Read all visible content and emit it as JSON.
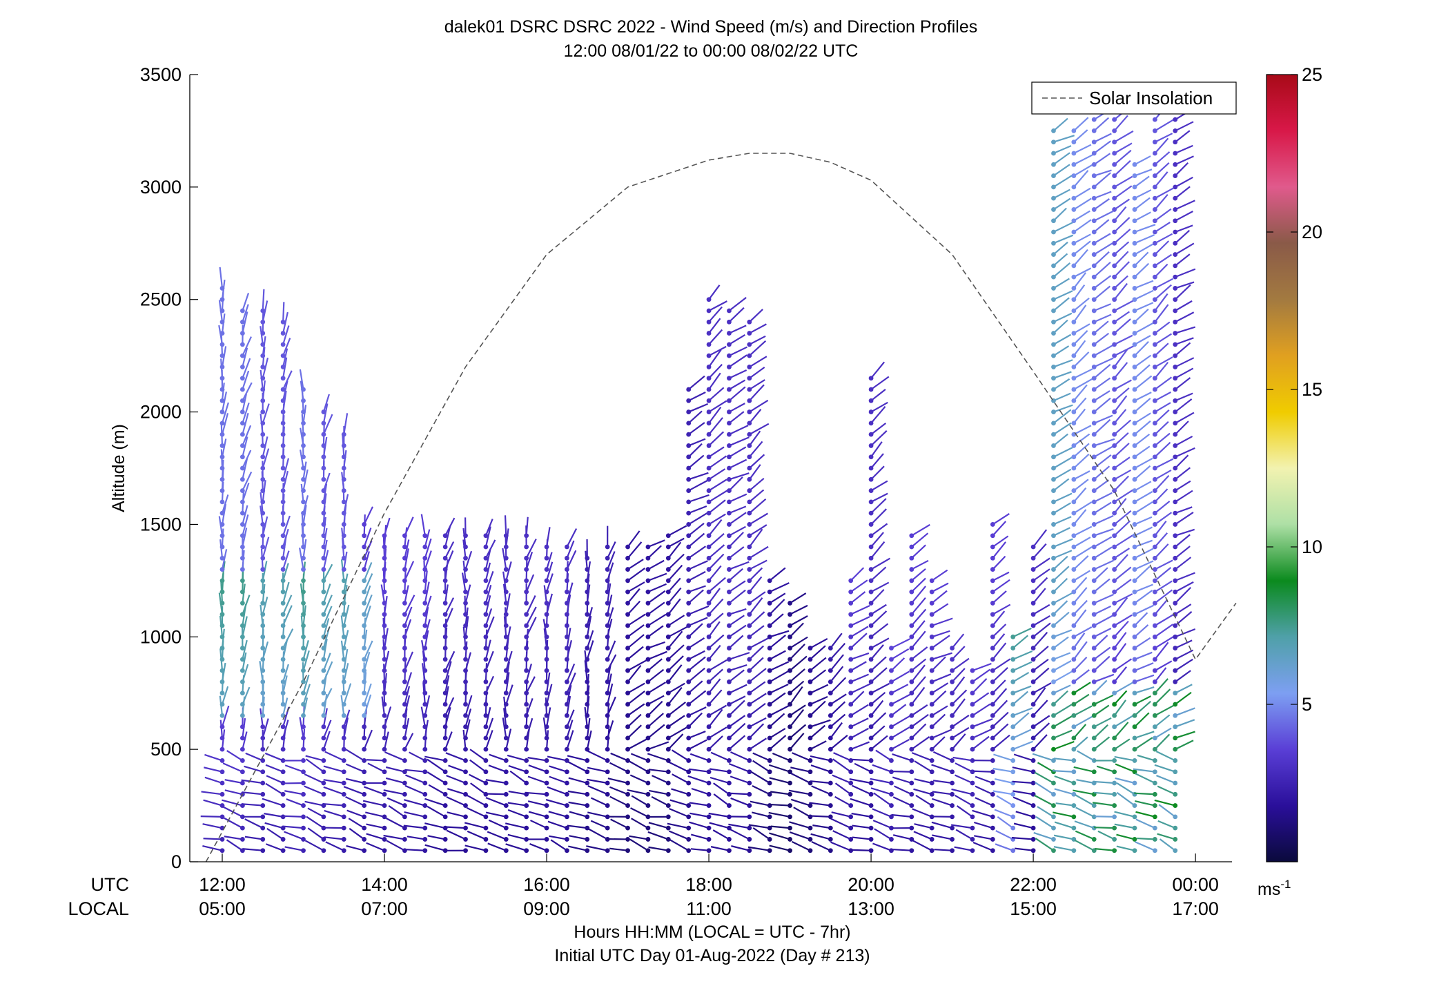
{
  "chart_data": {
    "type": "scatter",
    "title": "dalek01 DSRC DSRC 2022 - Wind Speed (m/s) and Direction Profiles",
    "subtitle": "12:00 08/01/22 to 00:00 08/02/22  UTC",
    "ylabel": "Altitude (m)",
    "xlabel": "Hours HH:MM  (LOCAL = UTC - 7hr)",
    "xlabel2": "Initial UTC Day 01-Aug-2022 (Day # 213)",
    "x_row_labels": [
      "UTC",
      "LOCAL"
    ],
    "xlim_hours_utc": [
      11.6,
      24.45
    ],
    "ylim": [
      0,
      3500
    ],
    "yticks": [
      0,
      500,
      1000,
      1500,
      2000,
      2500,
      3000,
      3500
    ],
    "xticks_utc": [
      "12:00",
      "14:00",
      "16:00",
      "18:00",
      "20:00",
      "22:00",
      "00:00"
    ],
    "xticks_local": [
      "05:00",
      "07:00",
      "09:00",
      "11:00",
      "13:00",
      "15:00",
      "17:00"
    ],
    "xtick_hours": [
      12,
      14,
      16,
      18,
      20,
      22,
      24
    ],
    "legend": {
      "label": "Solar Insolation",
      "position": "top-right"
    },
    "colorbar": {
      "ticks": [
        5,
        10,
        15,
        20,
        25
      ],
      "range": [
        0,
        25
      ],
      "unit_base": "ms",
      "unit_exp": "-1",
      "colors": [
        "#0a0a3c",
        "#2a0f9a",
        "#5a3fd6",
        "#7d9ff2",
        "#4fa0a8",
        "#0b8a1e",
        "#aee0a6",
        "#f2f2b0",
        "#f0cc00",
        "#e0a020",
        "#a37a40",
        "#8a5a48",
        "#e05a8c",
        "#d81848",
        "#a80a18"
      ]
    },
    "solar_insolation": {
      "style": "dashed",
      "x_hours_utc": [
        11.8,
        13,
        14,
        15,
        16,
        17,
        18,
        18.5,
        19,
        19.5,
        20,
        21,
        22,
        23,
        24,
        24.5
      ],
      "y_m": [
        0,
        800,
        1550,
        2200,
        2700,
        3000,
        3120,
        3150,
        3150,
        3110,
        3030,
        2700,
        2180,
        1650,
        900,
        1150
      ]
    },
    "barb_columns": [
      {
        "t": 12.0,
        "top": 2550,
        "sp": 4.5
      },
      {
        "t": 12.25,
        "top": 2450,
        "sp": 4.5
      },
      {
        "t": 12.5,
        "top": 2450,
        "sp": 4.0
      },
      {
        "t": 12.75,
        "top": 2400,
        "sp": 4.0
      },
      {
        "t": 13.0,
        "top": 2100,
        "sp": 4.5
      },
      {
        "t": 13.25,
        "top": 2000,
        "sp": 4.0
      },
      {
        "t": 13.5,
        "top": 1900,
        "sp": 4.0
      },
      {
        "t": 13.75,
        "top": 1500,
        "sp": 3.5
      },
      {
        "t": 14.0,
        "top": 1450,
        "sp": 3.5
      },
      {
        "t": 14.25,
        "top": 1450,
        "sp": 3.5
      },
      {
        "t": 14.5,
        "top": 1450,
        "sp": 3.5
      },
      {
        "t": 14.75,
        "top": 1450,
        "sp": 3.0
      },
      {
        "t": 15.0,
        "top": 1450,
        "sp": 3.0
      },
      {
        "t": 15.25,
        "top": 1450,
        "sp": 3.0
      },
      {
        "t": 15.5,
        "top": 1450,
        "sp": 3.0
      },
      {
        "t": 15.75,
        "top": 1450,
        "sp": 3.0
      },
      {
        "t": 16.0,
        "top": 1400,
        "sp": 3.0
      },
      {
        "t": 16.25,
        "top": 1400,
        "sp": 3.0
      },
      {
        "t": 16.5,
        "top": 1350,
        "sp": 2.5
      },
      {
        "t": 16.75,
        "top": 1400,
        "sp": 2.5
      },
      {
        "t": 17.0,
        "top": 1400,
        "sp": 2.0
      },
      {
        "t": 17.25,
        "top": 1400,
        "sp": 2.0
      },
      {
        "t": 17.5,
        "top": 1450,
        "sp": 2.0
      },
      {
        "t": 17.75,
        "top": 2100,
        "sp": 2.5
      },
      {
        "t": 18.0,
        "top": 2500,
        "sp": 3.0
      },
      {
        "t": 18.25,
        "top": 2450,
        "sp": 3.0
      },
      {
        "t": 18.5,
        "top": 2400,
        "sp": 3.0
      },
      {
        "t": 18.75,
        "top": 1250,
        "sp": 2.0
      },
      {
        "t": 19.0,
        "top": 1150,
        "sp": 1.5
      },
      {
        "t": 19.25,
        "top": 950,
        "sp": 2.0
      },
      {
        "t": 19.5,
        "top": 950,
        "sp": 2.5
      },
      {
        "t": 19.75,
        "top": 1250,
        "sp": 3.5
      },
      {
        "t": 20.0,
        "top": 2150,
        "sp": 3.0
      },
      {
        "t": 20.25,
        "top": 950,
        "sp": 4.0
      },
      {
        "t": 20.5,
        "top": 1450,
        "sp": 3.5
      },
      {
        "t": 20.75,
        "top": 1250,
        "sp": 3.5
      },
      {
        "t": 21.0,
        "top": 950,
        "sp": 3.5
      },
      {
        "t": 21.25,
        "top": 850,
        "sp": 4.0
      },
      {
        "t": 21.5,
        "top": 1500,
        "sp": 3.5
      },
      {
        "t": 21.75,
        "top": 1000,
        "sp": 8.0
      },
      {
        "t": 22.0,
        "top": 1400,
        "sp": 3.0
      },
      {
        "t": 22.25,
        "top": 3250,
        "sp": 6.5
      },
      {
        "t": 22.5,
        "top": 3250,
        "sp": 5.0
      },
      {
        "t": 22.75,
        "top": 3300,
        "sp": 4.5
      },
      {
        "t": 23.0,
        "top": 3300,
        "sp": 4.0
      },
      {
        "t": 23.25,
        "top": 3100,
        "sp": 5.0
      },
      {
        "t": 23.5,
        "top": 3300,
        "sp": 4.0
      },
      {
        "t": 23.75,
        "top": 3300,
        "sp": 3.0
      }
    ]
  }
}
